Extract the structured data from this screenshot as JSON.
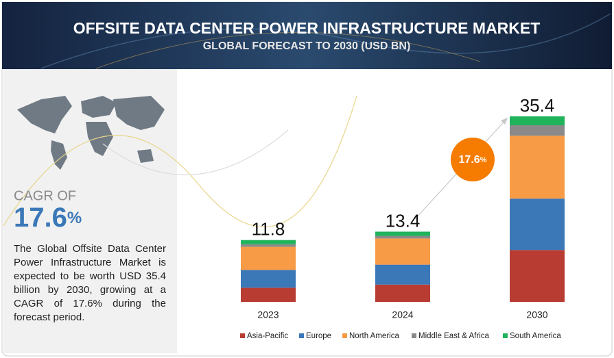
{
  "header": {
    "title": "OFFSITE DATA CENTER POWER INFRASTRUCTURE MARKET",
    "subtitle": "GLOBAL FORECAST TO 2030 (USD BN)"
  },
  "side_panel": {
    "cagr_label": "CAGR OF",
    "cagr": {
      "value": "17.6",
      "unit": "%"
    },
    "description": "The Global Offsite Data Center Power Infrastructure Market is expected to be worth USD 35.4 billion by 2030, growing at a CAGR of 17.6% during the forecast period."
  },
  "chart_data": {
    "type": "stacked_bar",
    "categories": [
      "2023",
      "2024",
      "2030"
    ],
    "totals": [
      11.8,
      13.4,
      35.4
    ],
    "series": [
      {
        "name": "Asia-Pacific",
        "color": "#b83c32",
        "values": [
          2.7,
          3.3,
          9.9
        ]
      },
      {
        "name": "Europe",
        "color": "#3a78b8",
        "values": [
          3.4,
          3.8,
          9.8
        ]
      },
      {
        "name": "North America",
        "color": "#f79b46",
        "values": [
          4.4,
          5.0,
          12.0
        ]
      },
      {
        "name": "Middle East & Africa",
        "color": "#8a8a8a",
        "values": [
          0.5,
          0.5,
          2.0
        ]
      },
      {
        "name": "South America",
        "color": "#1fb35a",
        "values": [
          0.8,
          0.8,
          1.7
        ]
      }
    ],
    "cagr_bubble": {
      "value": "17.6",
      "unit": "%"
    }
  }
}
